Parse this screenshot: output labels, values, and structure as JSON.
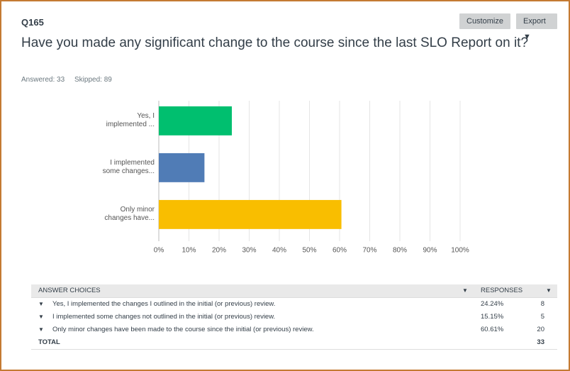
{
  "question": {
    "id": "Q165",
    "title": "Have you made any significant change to the course since the last SLO Report on it?",
    "answered": "Answered: 33",
    "skipped": "Skipped: 89"
  },
  "buttons": [
    "Customize",
    "Export"
  ],
  "chart_data": {
    "type": "hbar",
    "categories": [
      "Yes, I implemented ...",
      "I implemented some changes...",
      "Only minor changes have..."
    ],
    "values": [
      24.24,
      15.15,
      60.61
    ],
    "colors": [
      "#00bf6f",
      "#507cb6",
      "#f9be00"
    ],
    "xlim": [
      0,
      100
    ],
    "xticks": [
      {
        "value": 0,
        "label": "0%"
      },
      {
        "value": 10,
        "label": "10%"
      },
      {
        "value": 20,
        "label": "20%"
      },
      {
        "value": 30,
        "label": "30%"
      },
      {
        "value": 40,
        "label": "40%"
      },
      {
        "value": 50,
        "label": "50%"
      },
      {
        "value": 60,
        "label": "60%"
      },
      {
        "value": 70,
        "label": "70%"
      },
      {
        "value": 80,
        "label": "80%"
      },
      {
        "value": 90,
        "label": "90%"
      },
      {
        "value": 100,
        "label": "100%"
      }
    ],
    "grid": true
  },
  "table": {
    "header": [
      "ANSWER CHOICES",
      "RESPONSES"
    ],
    "rows": [
      [
        "Yes, I implemented the changes I outlined in the initial (or previous) review.",
        "24.24%",
        8
      ],
      [
        "I implemented some changes not outlined in the initial (or previous) review.",
        "15.15%",
        5
      ],
      [
        "Only minor changes have been made to the course since the initial (or previous) review.",
        "60.61%",
        20
      ]
    ],
    "total": [
      "TOTAL",
      33
    ]
  }
}
